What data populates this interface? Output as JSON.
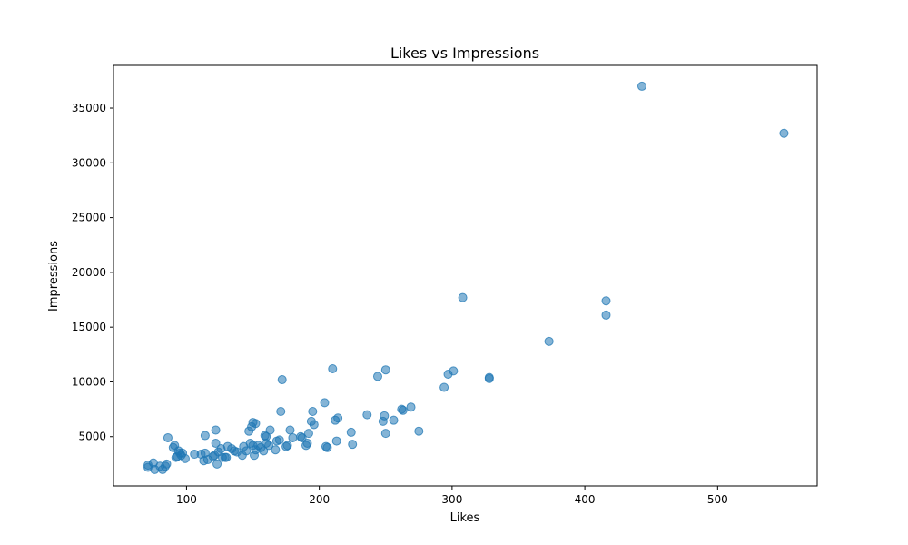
{
  "chart_data": {
    "type": "scatter",
    "title": "Likes vs Impressions",
    "xlabel": "Likes",
    "ylabel": "Impressions",
    "xlim": [
      45,
      575
    ],
    "ylim": [
      500,
      38900
    ],
    "xticks": [
      100,
      200,
      300,
      400,
      500
    ],
    "yticks": [
      5000,
      10000,
      15000,
      20000,
      25000,
      30000,
      35000
    ],
    "grid": false,
    "marker_color": "#1f77b4",
    "marker_alpha": 0.55,
    "series": [
      {
        "points": [
          [
            71,
            2400
          ],
          [
            71,
            2200
          ],
          [
            75,
            2600
          ],
          [
            76,
            2000
          ],
          [
            80,
            2300
          ],
          [
            82,
            2000
          ],
          [
            84,
            2300
          ],
          [
            85,
            2500
          ],
          [
            86,
            4900
          ],
          [
            90,
            4000
          ],
          [
            91,
            4200
          ],
          [
            92,
            3100
          ],
          [
            93,
            3200
          ],
          [
            94,
            3700
          ],
          [
            95,
            3500
          ],
          [
            96,
            3300
          ],
          [
            97,
            3500
          ],
          [
            99,
            3000
          ],
          [
            106,
            3400
          ],
          [
            111,
            3400
          ],
          [
            113,
            2800
          ],
          [
            114,
            3500
          ],
          [
            114,
            5100
          ],
          [
            116,
            2900
          ],
          [
            120,
            3200
          ],
          [
            121,
            3300
          ],
          [
            122,
            5600
          ],
          [
            122,
            4400
          ],
          [
            123,
            2500
          ],
          [
            124,
            3600
          ],
          [
            126,
            3900
          ],
          [
            127,
            3100
          ],
          [
            129,
            3100
          ],
          [
            130,
            3100
          ],
          [
            131,
            4100
          ],
          [
            134,
            3900
          ],
          [
            136,
            3700
          ],
          [
            138,
            3600
          ],
          [
            142,
            3300
          ],
          [
            143,
            4100
          ],
          [
            145,
            3700
          ],
          [
            147,
            5500
          ],
          [
            148,
            4400
          ],
          [
            149,
            5900
          ],
          [
            150,
            6300
          ],
          [
            150,
            4200
          ],
          [
            151,
            3300
          ],
          [
            152,
            6200
          ],
          [
            152,
            3800
          ],
          [
            154,
            4200
          ],
          [
            156,
            4000
          ],
          [
            158,
            3700
          ],
          [
            159,
            5100
          ],
          [
            160,
            5000
          ],
          [
            160,
            4400
          ],
          [
            162,
            4200
          ],
          [
            163,
            5600
          ],
          [
            167,
            3800
          ],
          [
            168,
            4600
          ],
          [
            170,
            4700
          ],
          [
            171,
            7300
          ],
          [
            172,
            10200
          ],
          [
            175,
            4100
          ],
          [
            176,
            4200
          ],
          [
            178,
            5600
          ],
          [
            180,
            4900
          ],
          [
            186,
            5000
          ],
          [
            187,
            4900
          ],
          [
            190,
            4200
          ],
          [
            191,
            4400
          ],
          [
            192,
            5300
          ],
          [
            194,
            6400
          ],
          [
            195,
            7300
          ],
          [
            196,
            6100
          ],
          [
            204,
            8100
          ],
          [
            205,
            4100
          ],
          [
            206,
            4000
          ],
          [
            210,
            11200
          ],
          [
            212,
            6500
          ],
          [
            213,
            4600
          ],
          [
            214,
            6700
          ],
          [
            224,
            5400
          ],
          [
            225,
            4300
          ],
          [
            236,
            7000
          ],
          [
            244,
            10500
          ],
          [
            248,
            6400
          ],
          [
            249,
            6900
          ],
          [
            250,
            11100
          ],
          [
            250,
            5300
          ],
          [
            256,
            6500
          ],
          [
            262,
            7500
          ],
          [
            263,
            7400
          ],
          [
            269,
            7700
          ],
          [
            275,
            5500
          ],
          [
            294,
            9500
          ],
          [
            297,
            10700
          ],
          [
            301,
            11000
          ],
          [
            308,
            17700
          ],
          [
            328,
            10400
          ],
          [
            328,
            10300
          ],
          [
            373,
            13700
          ],
          [
            416,
            17400
          ],
          [
            416,
            16100
          ],
          [
            443,
            37000
          ],
          [
            550,
            32700
          ]
        ]
      }
    ]
  }
}
